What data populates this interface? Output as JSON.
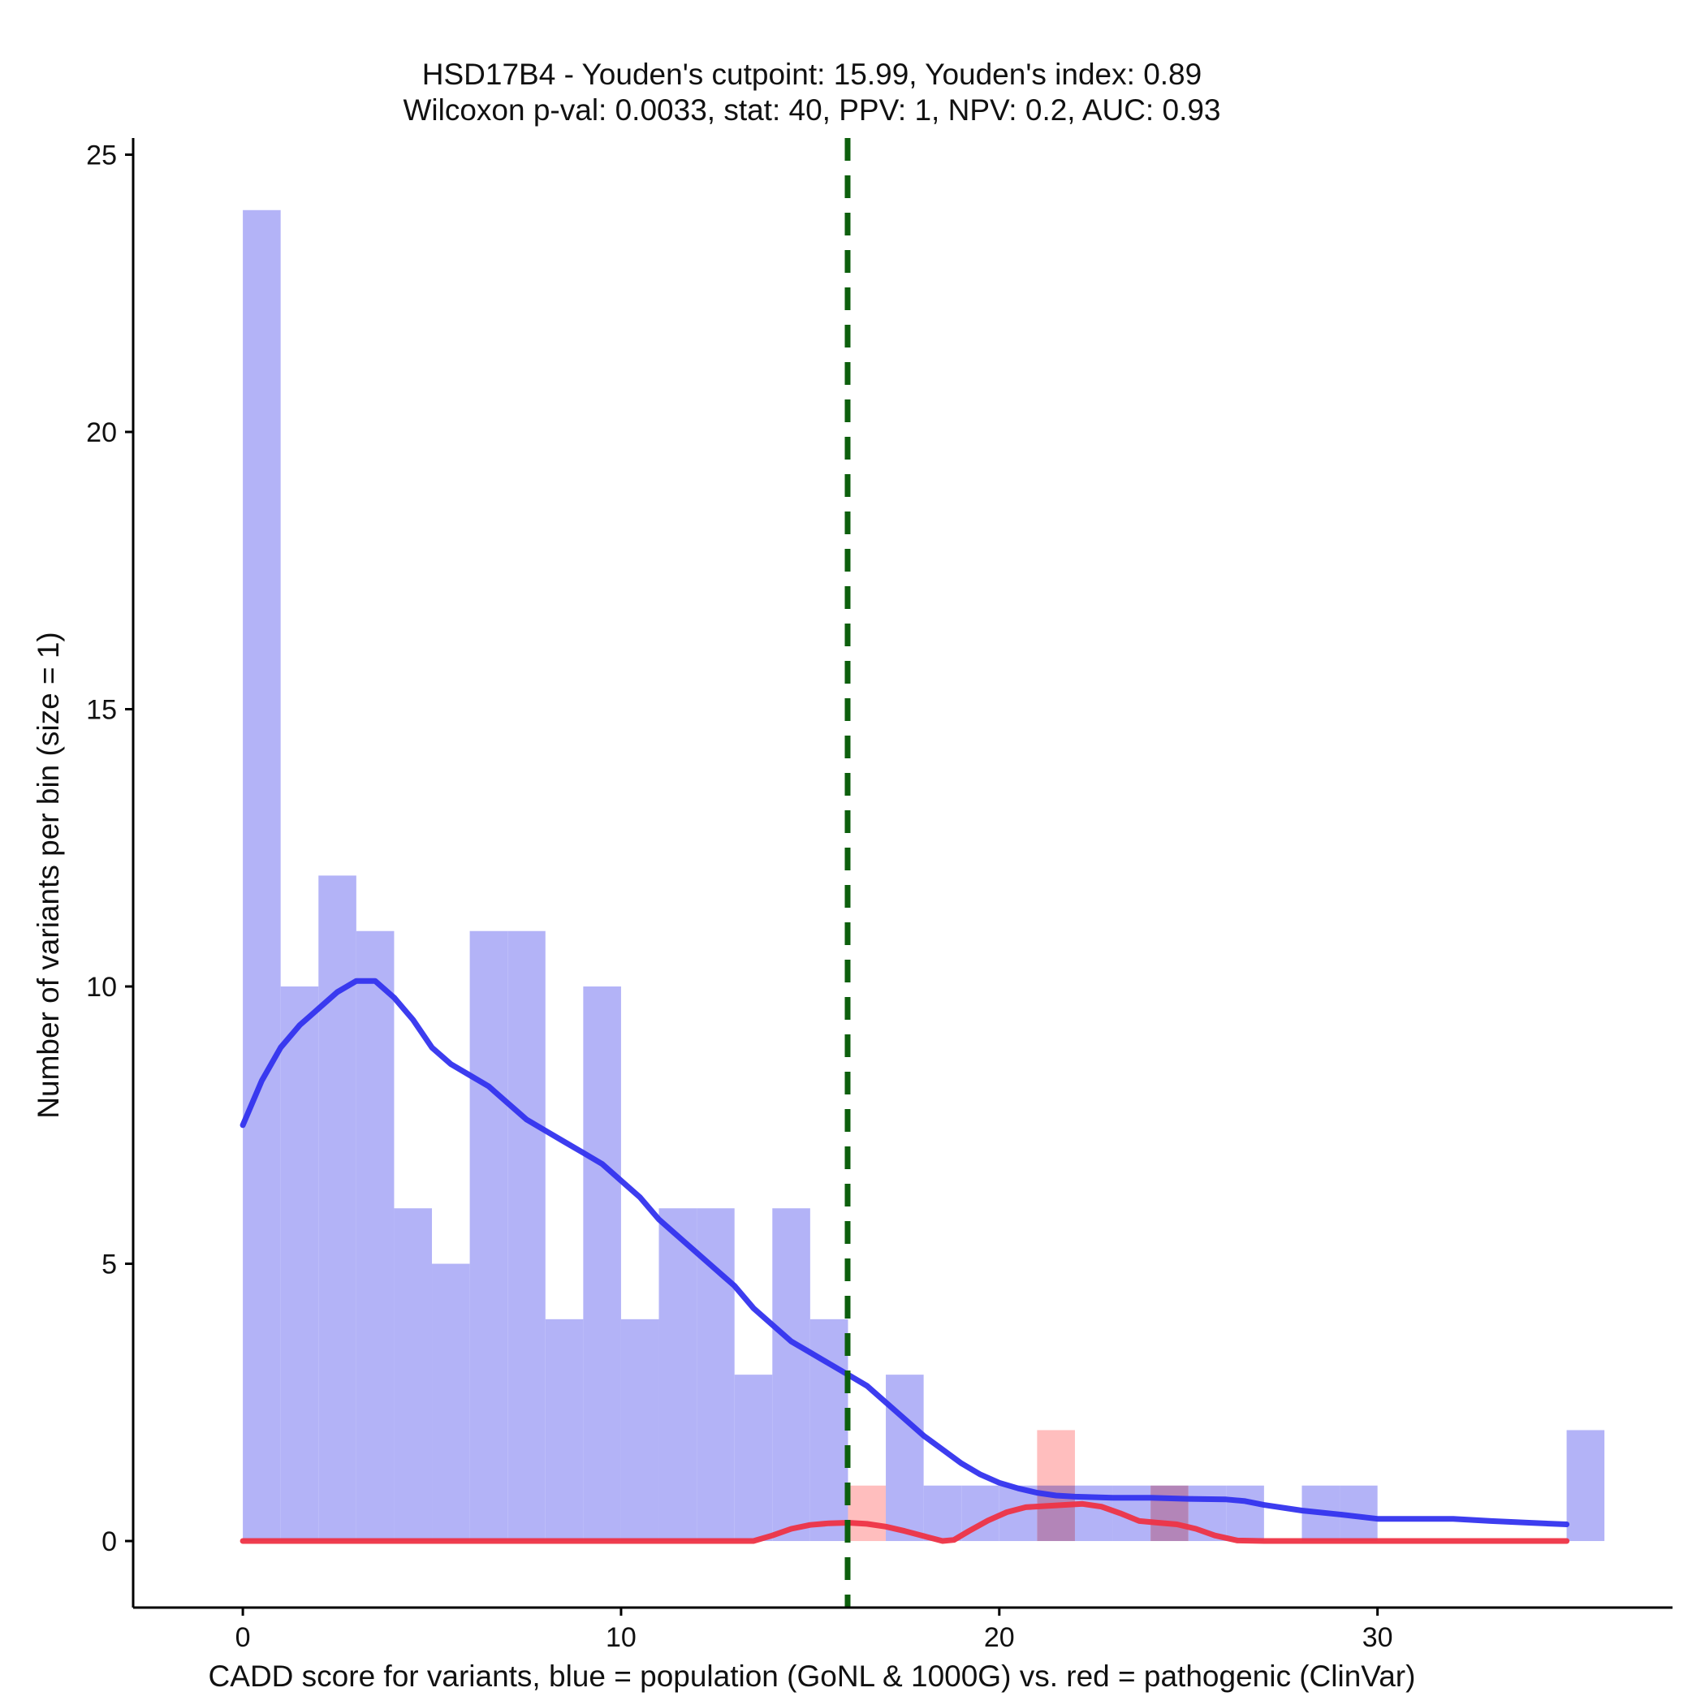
{
  "chart_data": {
    "type": "histogram",
    "title_line1": "HSD17B4 - Youden's cutpoint: 15.99, Youden's index: 0.89",
    "title_line2": "Wilcoxon p-val: 0.0033, stat: 40, PPV: 1, NPV: 0.2, AUC: 0.93",
    "xlabel": "CADD score for variants, blue = population (GoNL & 1000G) vs. red = pathogenic (ClinVar)",
    "ylabel": "Number of variants per bin (size = 1)",
    "xlim": [
      -2.9,
      37.8
    ],
    "ylim": [
      -1.2,
      25.3
    ],
    "x_ticks": [
      0,
      10,
      20,
      30
    ],
    "y_ticks": [
      0,
      5,
      10,
      15,
      20,
      25
    ],
    "bin_size": 1,
    "cutpoint": 15.99,
    "series": [
      {
        "name": "population (GoNL & 1000G)",
        "color": "#b3b3f7",
        "bins_start": [
          0,
          1,
          2,
          3,
          4,
          5,
          6,
          7,
          8,
          9,
          10,
          11,
          12,
          13,
          14,
          15,
          16,
          17,
          18,
          19,
          20,
          21,
          22,
          23,
          24,
          25,
          26,
          27,
          28,
          29,
          30,
          31,
          32,
          33,
          34,
          35
        ],
        "counts": [
          24,
          10,
          12,
          11,
          6,
          5,
          11,
          11,
          4,
          10,
          4,
          6,
          6,
          3,
          6,
          4,
          0,
          3,
          1,
          1,
          1,
          1,
          1,
          1,
          1,
          1,
          1,
          0,
          1,
          1,
          0,
          0,
          0,
          0,
          0,
          2
        ]
      },
      {
        "name": "pathogenic (ClinVar)",
        "color": "#ffb3b3",
        "bins_start": [
          16,
          21,
          24
        ],
        "counts": [
          1,
          2,
          1
        ]
      }
    ],
    "density_curves": [
      {
        "name": "population density",
        "color": "#3333ee",
        "points": [
          [
            0,
            7.5
          ],
          [
            0.5,
            8.3
          ],
          [
            1,
            8.9
          ],
          [
            1.5,
            9.3
          ],
          [
            2,
            9.6
          ],
          [
            2.5,
            9.9
          ],
          [
            3,
            10.1
          ],
          [
            3.5,
            10.1
          ],
          [
            4,
            9.8
          ],
          [
            4.5,
            9.4
          ],
          [
            5,
            8.9
          ],
          [
            5.5,
            8.6
          ],
          [
            6,
            8.4
          ],
          [
            6.5,
            8.2
          ],
          [
            7,
            7.9
          ],
          [
            7.5,
            7.6
          ],
          [
            8,
            7.4
          ],
          [
            8.5,
            7.2
          ],
          [
            9,
            7.0
          ],
          [
            9.5,
            6.8
          ],
          [
            10,
            6.5
          ],
          [
            10.5,
            6.2
          ],
          [
            11,
            5.8
          ],
          [
            11.5,
            5.5
          ],
          [
            12,
            5.2
          ],
          [
            12.5,
            4.9
          ],
          [
            13,
            4.6
          ],
          [
            13.5,
            4.2
          ],
          [
            14,
            3.9
          ],
          [
            14.5,
            3.6
          ],
          [
            15,
            3.4
          ],
          [
            15.5,
            3.2
          ],
          [
            16,
            3.0
          ],
          [
            16.5,
            2.8
          ],
          [
            17,
            2.5
          ],
          [
            17.5,
            2.2
          ],
          [
            18,
            1.9
          ],
          [
            18.5,
            1.65
          ],
          [
            19,
            1.4
          ],
          [
            19.5,
            1.2
          ],
          [
            20,
            1.05
          ],
          [
            20.5,
            0.95
          ],
          [
            21,
            0.87
          ],
          [
            21.5,
            0.82
          ],
          [
            22,
            0.8
          ],
          [
            23,
            0.78
          ],
          [
            24,
            0.78
          ],
          [
            25,
            0.76
          ],
          [
            26,
            0.75
          ],
          [
            26.5,
            0.72
          ],
          [
            27,
            0.65
          ],
          [
            28,
            0.55
          ],
          [
            29,
            0.48
          ],
          [
            30,
            0.4
          ],
          [
            31,
            0.4
          ],
          [
            32,
            0.4
          ],
          [
            33,
            0.36
          ],
          [
            34,
            0.33
          ],
          [
            35,
            0.3
          ]
        ]
      },
      {
        "name": "pathogenic density",
        "color": "#ee3344",
        "points": [
          [
            0,
            0
          ],
          [
            13.5,
            0
          ],
          [
            14,
            0.1
          ],
          [
            14.5,
            0.22
          ],
          [
            15,
            0.29
          ],
          [
            15.5,
            0.32
          ],
          [
            16,
            0.33
          ],
          [
            16.5,
            0.31
          ],
          [
            17,
            0.26
          ],
          [
            17.5,
            0.18
          ],
          [
            18,
            0.09
          ],
          [
            18.5,
            0.0
          ],
          [
            18.8,
            0.02
          ],
          [
            19.2,
            0.18
          ],
          [
            19.7,
            0.37
          ],
          [
            20.2,
            0.52
          ],
          [
            20.7,
            0.61
          ],
          [
            21.2,
            0.63
          ],
          [
            21.7,
            0.65
          ],
          [
            22.2,
            0.67
          ],
          [
            22.7,
            0.62
          ],
          [
            23.2,
            0.5
          ],
          [
            23.7,
            0.36
          ],
          [
            24.2,
            0.33
          ],
          [
            24.7,
            0.3
          ],
          [
            25.2,
            0.22
          ],
          [
            25.7,
            0.1
          ],
          [
            26.3,
            0.01
          ],
          [
            27,
            0
          ],
          [
            35,
            0
          ]
        ]
      }
    ],
    "cutpoint_line": {
      "color": "#0d5f0d",
      "style": "dashed"
    },
    "grid": false
  }
}
